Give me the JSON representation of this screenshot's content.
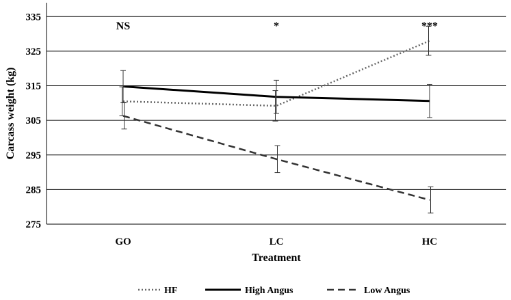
{
  "chart_data": {
    "type": "line",
    "title": "",
    "xlabel": "Treatment",
    "ylabel": "Carcass weight (kg)",
    "categories": [
      "GO",
      "LC",
      "HC"
    ],
    "ylim": [
      275,
      339
    ],
    "yticks": [
      275,
      285,
      295,
      305,
      315,
      325,
      335
    ],
    "grid": true,
    "legend_position": "bottom",
    "series": [
      {
        "name": "HF",
        "style": "dotted",
        "color": "#666666",
        "values": [
          310.5,
          309.2,
          328.0
        ],
        "errors": [
          4.2,
          4.4,
          4.2
        ]
      },
      {
        "name": "High Angus",
        "style": "solid",
        "color": "#000000",
        "values": [
          314.8,
          311.8,
          310.6
        ],
        "errors": [
          4.6,
          4.8,
          4.8
        ]
      },
      {
        "name": "Low Angus",
        "style": "dashed",
        "color": "#333333",
        "values": [
          306.3,
          293.8,
          282.0
        ],
        "errors": [
          3.8,
          3.9,
          3.8
        ]
      }
    ],
    "annotations": [
      {
        "category": "GO",
        "text": "NS"
      },
      {
        "category": "LC",
        "text": "*"
      },
      {
        "category": "HC",
        "text": "***"
      }
    ]
  }
}
